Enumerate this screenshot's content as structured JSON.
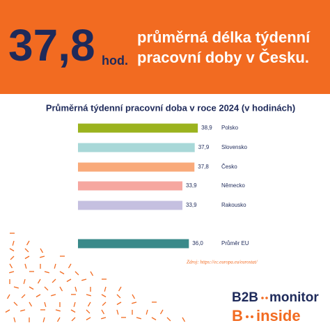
{
  "chart_data": {
    "type": "barh",
    "headline": "37,8",
    "headline_unit": "hod.",
    "headline_text": [
      "průměrná délka týdenní",
      "pracovní doby v Česku."
    ],
    "title": "Průměrná týdenní pracovní doba v roce 2024 (v hodinách)",
    "categories": [
      "Polsko",
      "Slovensko",
      "Česko",
      "Německo",
      "Rakousko",
      "Průměr EU"
    ],
    "values": [
      38.9,
      37.9,
      37.8,
      33.9,
      33.9,
      36.0
    ],
    "value_labels": [
      "38,9",
      "37,9",
      "37,8",
      "33,9",
      "33,9",
      "36,0"
    ],
    "colors": [
      "#9bb31e",
      "#a8d8d8",
      "#f9aa7a",
      "#f6a7a0",
      "#c5c0e0",
      "#3a8a8a"
    ],
    "xlim": [
      0,
      40
    ],
    "source": "Zdroj: https://ec.europa.eu/eurostat/",
    "logo": [
      "B2B",
      "monitor",
      "B",
      "inside"
    ]
  }
}
